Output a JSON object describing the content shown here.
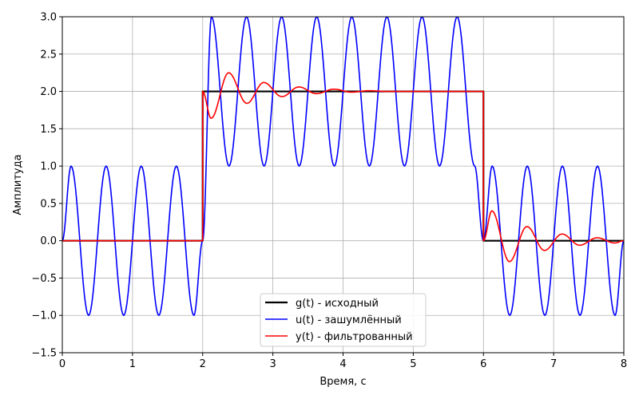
{
  "chart_data": {
    "type": "line",
    "title": "",
    "xlabel": "Время, с",
    "ylabel": "Амплитуда",
    "xlim": [
      0,
      8
    ],
    "ylim": [
      -1.5,
      3.0
    ],
    "grid": true,
    "legend_position": "bottom-center",
    "x_ticks": [
      "0",
      "1",
      "2",
      "3",
      "4",
      "5",
      "6",
      "7",
      "8"
    ],
    "y_ticks": [
      "−1.5",
      "−1.0",
      "−0.5",
      "0.0",
      "0.5",
      "1.0",
      "1.5",
      "2.0",
      "2.5",
      "3.0"
    ],
    "series": [
      {
        "name": "g(t) - исходный",
        "color": "#000000",
        "x": [
          0,
          2,
          2,
          6,
          6,
          8
        ],
        "y": [
          0,
          0,
          2,
          2,
          0,
          0
        ]
      },
      {
        "name": "u(t) - зашумлённый",
        "color": "#0000ff",
        "x": [
          0,
          0.125,
          0.375,
          0.625,
          0.875,
          1.125,
          1.375,
          1.625,
          1.875,
          2.0,
          2.125,
          2.375,
          2.625,
          2.875,
          3.125,
          3.375,
          3.625,
          3.875,
          4.125,
          4.375,
          4.625,
          4.875,
          5.125,
          5.375,
          5.625,
          5.875,
          6.0,
          6.125,
          6.375,
          6.625,
          6.875,
          7.125,
          7.375,
          7.625,
          7.875,
          8.0
        ],
        "y": [
          0,
          1,
          -1,
          1,
          -1,
          1,
          -1,
          1,
          -1,
          0,
          3,
          1,
          3,
          1,
          3,
          1,
          3,
          1,
          3,
          1,
          3,
          1,
          3,
          1,
          3,
          1,
          0,
          1,
          -1,
          1,
          -1,
          1,
          -1,
          1,
          -1,
          0
        ]
      },
      {
        "name": "y(t) - фильтрованный",
        "color": "#ff0000",
        "x": [
          0,
          2.0,
          2.0,
          2.12,
          2.37,
          2.63,
          2.87,
          3.13,
          3.37,
          3.62,
          3.87,
          4.12,
          4.37,
          4.62,
          5.0,
          5.5,
          6.0,
          6.0,
          6.12,
          6.37,
          6.62,
          6.87,
          7.12,
          7.37,
          7.62,
          7.87,
          8.0
        ],
        "y": [
          0,
          0,
          2.0,
          1.64,
          2.25,
          1.84,
          2.12,
          1.93,
          2.06,
          1.97,
          2.03,
          1.99,
          2.01,
          2.0,
          2.0,
          2.0,
          2.0,
          0.0,
          0.4,
          -0.28,
          0.19,
          -0.13,
          0.09,
          -0.06,
          0.04,
          -0.03,
          0.0
        ]
      }
    ]
  }
}
